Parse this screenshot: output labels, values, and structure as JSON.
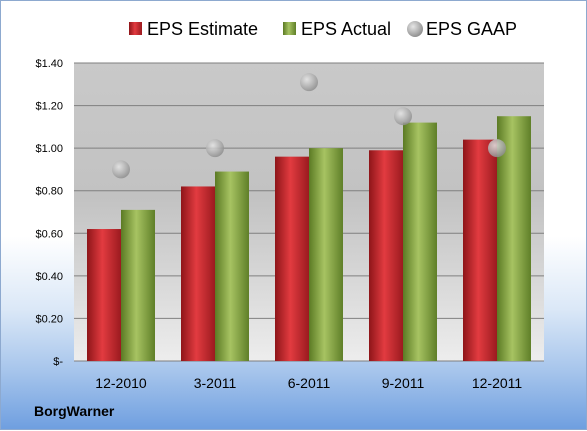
{
  "company": "BorgWarner",
  "chart_data": {
    "type": "bar",
    "categories": [
      "12-2010",
      "3-2011",
      "6-2011",
      "9-2011",
      "12-2011"
    ],
    "series": [
      {
        "name": "EPS Estimate",
        "kind": "bar",
        "color": "#c0282d",
        "values": [
          0.62,
          0.82,
          0.96,
          0.99,
          1.04
        ]
      },
      {
        "name": "EPS Actual",
        "kind": "bar",
        "color": "#7a9a3a",
        "values": [
          0.71,
          0.89,
          1.0,
          1.12,
          1.15
        ]
      },
      {
        "name": "EPS GAAP",
        "kind": "scatter",
        "color": "#a9a9a9",
        "values": [
          0.9,
          1.0,
          1.31,
          1.15,
          1.0
        ]
      }
    ],
    "ylim": [
      0,
      1.4
    ],
    "yticks": [
      0,
      0.2,
      0.4,
      0.6,
      0.8,
      1.0,
      1.2,
      1.4
    ],
    "ytick_labels": [
      "$-",
      "$0.20",
      "$0.40",
      "$0.60",
      "$0.80",
      "$1.00",
      "$1.20",
      "$1.40"
    ],
    "legend_position": "top",
    "grid": true
  }
}
